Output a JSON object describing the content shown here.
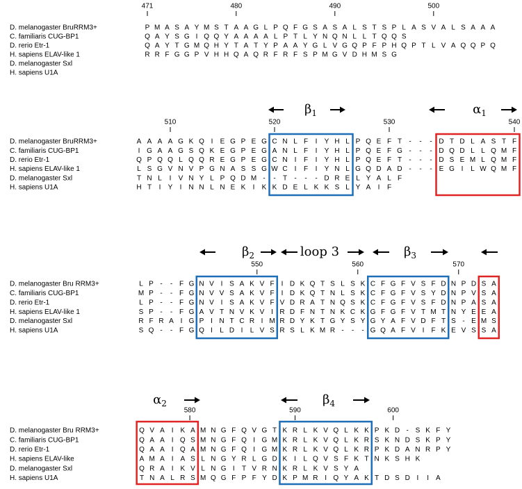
{
  "blocks": [
    {
      "ruler": [
        471,
        480,
        490,
        500
      ],
      "annotations": [],
      "rows": [
        {
          "name": "D. melanogaster BruRRM3+",
          "seq": "PMASAYMSTAAGLPQFGSASALSTSPLASVALSAAA"
        },
        {
          "name": "C. familiaris CUG-BP1",
          "seq": "         QAYSGIQQYAAAALPTLYNQNLLTQQS"
        },
        {
          "name": "D. rerio Etr-1",
          "seq": "QAYTGMQHYTATYPAAYGLVGQPFPHQPTLVAQQPQ"
        },
        {
          "name": "H. sapiens ELAV-like 1",
          "seq": "          RRFGGPVHHQAQRFRFSPMGVDHMSG"
        },
        {
          "name": "D. melanogaster Sxl",
          "seq": ""
        },
        {
          "name": "H. sapiens U1A",
          "seq": ""
        }
      ]
    },
    {
      "ruler": [
        510,
        520,
        530,
        540
      ],
      "annotations": [
        {
          "symbol": "β",
          "sub": "1"
        },
        {
          "symbol": "α",
          "sub": "1"
        }
      ],
      "rows": [
        {
          "name": "D. melanogaster BruRRM3+",
          "seq": "AAAAGKQIEGPEGCNLFIYHLPQEFT---DTDLASTF"
        },
        {
          "name": "C. familiaris CUG-BP1",
          "seq": "IGAAGSQKEGPEGANLFIYHLPQEFG---DQDLLQMF"
        },
        {
          "name": "D. rerio Etr-1",
          "seq": "QPQQLQQREGPEGCNIFIYHLPQEFT---DSEMLQMF"
        },
        {
          "name": "H. sapiens ELAV-like 1",
          "seq": "LSGVNVPGNASSGWCIFIYNLGQDAD---EGILWQMF"
        },
        {
          "name": "D. melanogaster Sxl",
          "seq": "           TNLIVNYLPQDM--T---DRELYALF"
        },
        {
          "name": "H. sapiens U1A",
          "seq": "            HTIYINNLNEKIKKDELKKSLYAIF"
        }
      ]
    },
    {
      "ruler": [
        550,
        560,
        570
      ],
      "annotations": [
        {
          "symbol": "β",
          "sub": "2"
        },
        {
          "text": "loop 3"
        },
        {
          "symbol": "β",
          "sub": "3"
        }
      ],
      "rows": [
        {
          "name": "D. melanogaster Bru RRM3+",
          "seq": "LP--FGNVISAKVFIDKQTSLSKCFGFVSFDNPDSA"
        },
        {
          "name": "C. familiaris CUG-BP1",
          "seq": "MP--FGNVVSAKVFIDKQTNLSKCFGFVSYDNPVSA"
        },
        {
          "name": "D. rerio Etr-1",
          "seq": "LP--FGNVISAKVFVDRATNQSKCFGFVSFDNPASA"
        },
        {
          "name": "H. sapiens ELAV-like 1",
          "seq": "SP--FGAVTNVKVIRDFNTNKCKGFGFVTMTNYEEA"
        },
        {
          "name": "D. melanogaster Sxl",
          "seq": "RFRAIGPINTCRIMRDYKTGYSYGYAFVDFTS-EMS"
        },
        {
          "name": "H. sapiens U1A",
          "seq": "SQ--FGQILDILVSRSLKMR---GQAFVIFKEVSSA"
        }
      ]
    },
    {
      "ruler": [
        580,
        590,
        600
      ],
      "annotations": [
        {
          "symbol": "α",
          "sub": "2"
        },
        {
          "symbol": "β",
          "sub": "4"
        }
      ],
      "rows": [
        {
          "name": "D. melanogaster Bru RRM3+",
          "seq": "QVAIKAMNGFQVGTKRLKVQLKKPKD-SKFY"
        },
        {
          "name": "C. familiaris CUG-BP1",
          "seq": "QAAIQSMNGFQIGMKRLKVQLKRSKNDSKPY"
        },
        {
          "name": "D. rerio Etr-1",
          "seq": "QAAIQAMNGFQIGMKRLKVQLKRPKDANRPY"
        },
        {
          "name": "H. sapiens ELAV-like",
          "seq": "AMAIASLNGYRLGDKILQVSFKTNKSHK"
        },
        {
          "name": "D. melanogaster Sxl",
          "seq": "QRAIKVLNGITVRNKRLKVSYA"
        },
        {
          "name": "H. sapiens U1A",
          "seq": "TNALRSMQGFPFYDKPMRIQYAKTDSDIIA"
        }
      ]
    }
  ]
}
